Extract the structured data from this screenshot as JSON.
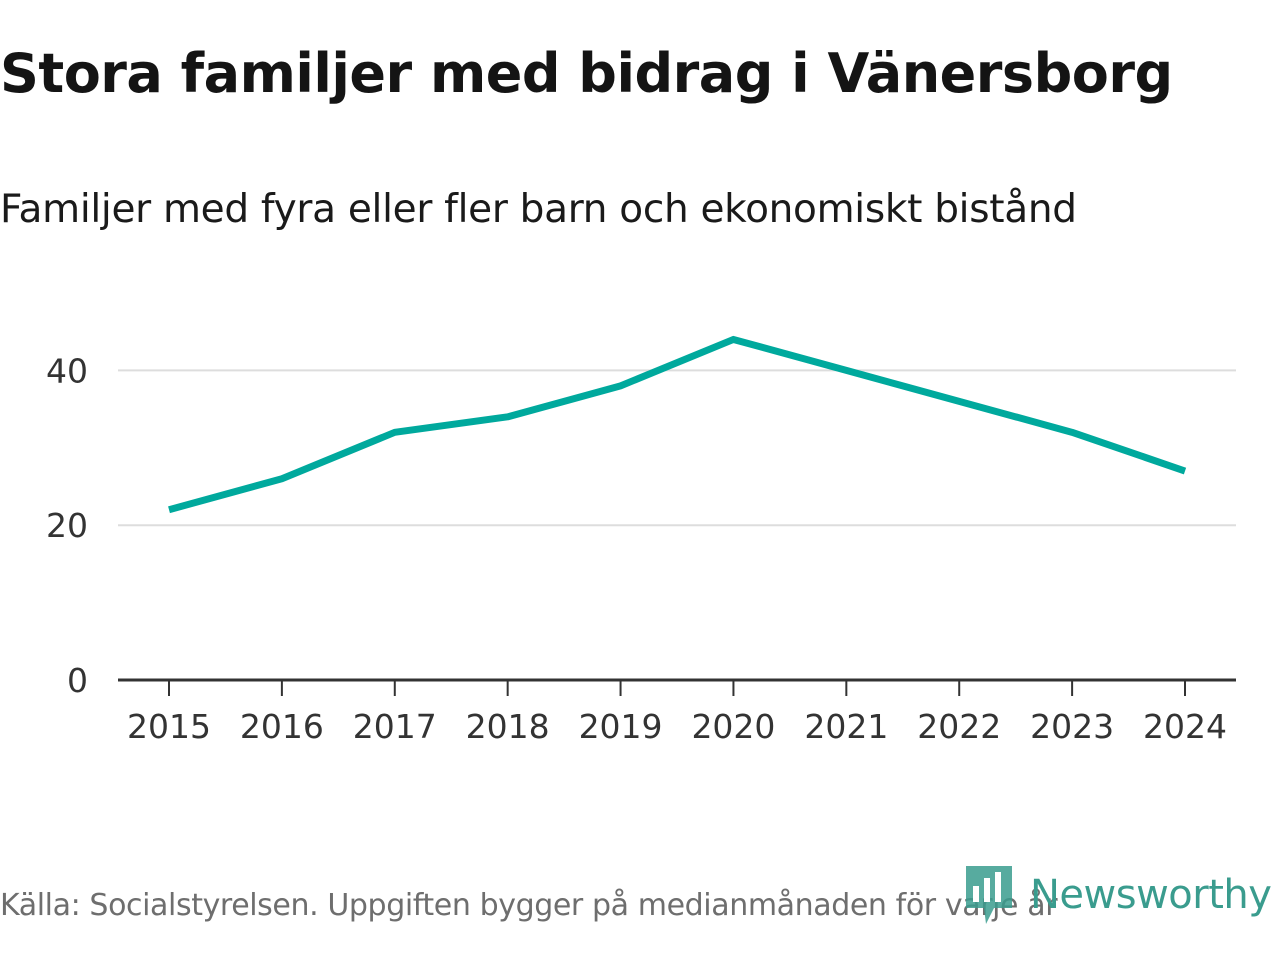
{
  "title": "Stora familjer med bidrag i Vänersborg",
  "subtitle": "Familjer med fyra eller fler barn och ekonomiskt bistånd",
  "source": "Källa: Socialstyrelsen. Uppgiften bygger på medianmånaden för varje år",
  "brand": {
    "name": "Newsworthy",
    "color": "#3a9c8e"
  },
  "colors": {
    "line": "#00a99d",
    "grid": "#dddddd",
    "axis": "#333333"
  },
  "chart_data": {
    "type": "line",
    "title": "Stora familjer med bidrag i Vänersborg",
    "subtitle": "Familjer med fyra eller fler barn och ekonomiskt bistånd",
    "xlabel": "",
    "ylabel": "",
    "x": [
      "2015",
      "2016",
      "2017",
      "2018",
      "2019",
      "2020",
      "2021",
      "2022",
      "2023",
      "2024"
    ],
    "series": [
      {
        "name": "Familjer med fyra eller fler barn och ekonomiskt bistånd",
        "values": [
          22,
          26,
          32,
          34,
          38,
          44,
          40,
          36,
          32,
          27
        ]
      }
    ],
    "ylim": [
      0,
      45
    ],
    "yticks": [
      0,
      20,
      40
    ],
    "grid": true,
    "legend": "none"
  }
}
